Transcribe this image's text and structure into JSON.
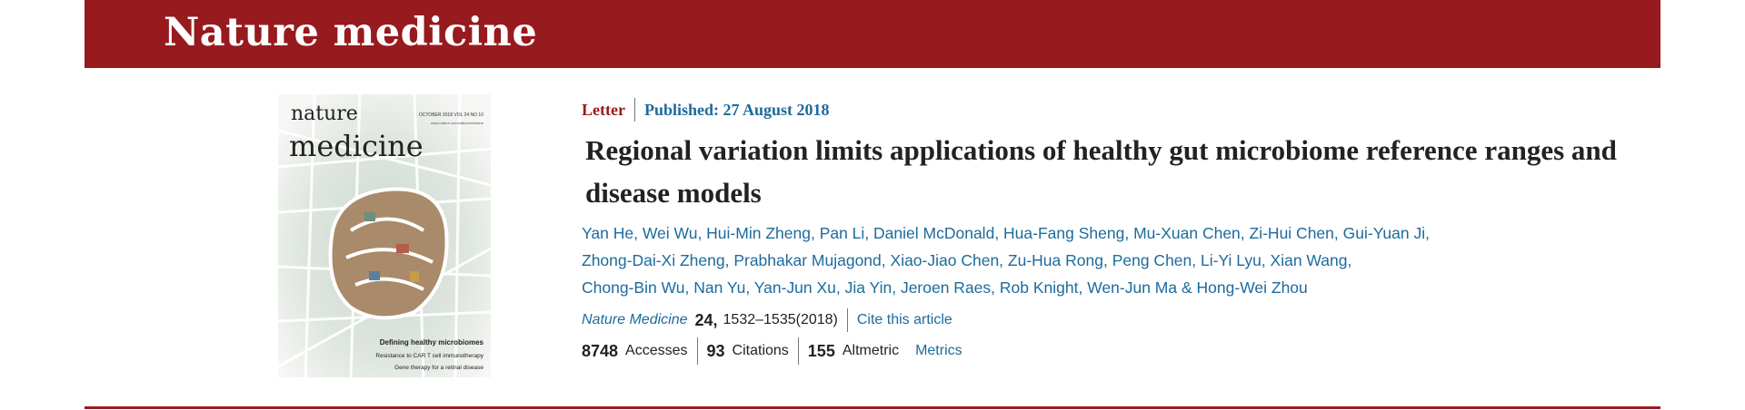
{
  "header": {
    "title": "Nature medicine"
  },
  "cover": {
    "masthead_top": "nature",
    "masthead_main": "medicine",
    "issue": "OCTOBER 2018 VOL 24 NO 10",
    "url": "www.nature.com/naturemedicine",
    "headlines": [
      "Defining healthy microbiomes",
      "Resistance to CAR T cell immunotherapy",
      "Gene therapy for a retinal disease"
    ]
  },
  "article": {
    "type": "Letter",
    "published": "Published: 27 August 2018",
    "title": "Regional variation limits applications of healthy gut microbiome reference ranges and disease models",
    "authors": [
      "Yan He",
      "Wei Wu",
      "Hui-Min Zheng",
      "Pan Li",
      "Daniel McDonald",
      "Hua-Fang Sheng",
      "Mu-Xuan Chen",
      "Zi-Hui Chen",
      "Gui-Yuan Ji",
      "Zhong-Dai-Xi Zheng",
      "Prabhakar Mujagond",
      "Xiao-Jiao Chen",
      "Zu-Hua Rong",
      "Peng Chen",
      "Li-Yi Lyu",
      "Xian Wang",
      "Chong-Bin Wu",
      "Nan Yu",
      "Yan-Jun Xu",
      "Jia Yin",
      "Jeroen Raes",
      "Rob Knight",
      "Wen-Jun Ma",
      "Hong-Wei Zhou"
    ],
    "journal": "Nature Medicine",
    "volume": "24,",
    "pages": "1532–1535(2018)",
    "cite_link": "Cite this article"
  },
  "metrics": {
    "accesses_value": "8748",
    "accesses_label": "Accesses",
    "citations_value": "93",
    "citations_label": "Citations",
    "altmetric_value": "155",
    "altmetric_label": "Altmetric",
    "metrics_link": "Metrics"
  }
}
